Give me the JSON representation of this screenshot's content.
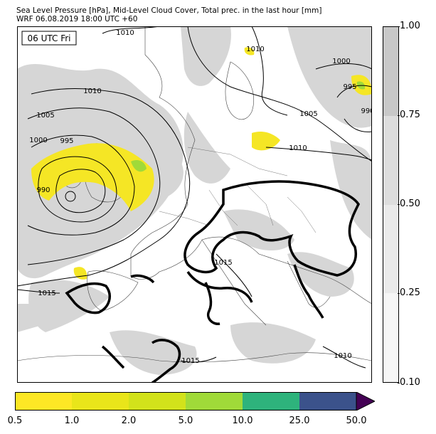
{
  "header": {
    "line1": "Sea Level Pressure [hPa], Mid-Level Cloud Cover, Total prec. in the last hour [mm]",
    "line2": "WRF 06.08.2019 18:00 UTC +60"
  },
  "map": {
    "time_badge": "06 UTC Fri",
    "isobar_labels": [
      "1010",
      "1010",
      "1010",
      "1005",
      "1000",
      "995",
      "990",
      "1000",
      "995",
      "990",
      "1005",
      "1010",
      "1015",
      "1015",
      "1015",
      "1010"
    ]
  },
  "cloud_colorbar": {
    "ticks": [
      "1.00",
      "0.75",
      "0.50",
      "0.25",
      "0.10"
    ],
    "levels": [
      {
        "from": 0.1,
        "to": 0.25,
        "color": "#f6f6f6"
      },
      {
        "from": 0.25,
        "to": 0.5,
        "color": "#eaeaea"
      },
      {
        "from": 0.5,
        "to": 0.75,
        "color": "#dddddd"
      },
      {
        "from": 0.75,
        "to": 1.0,
        "color": "#c8c8c8"
      }
    ]
  },
  "precip_colorbar": {
    "ticks": [
      "0.5",
      "1.0",
      "2.0",
      "5.0",
      "10.0",
      "25.0",
      "50.0"
    ],
    "colors": [
      "#fde725",
      "#e9e51a",
      "#d2e21b",
      "#a0da39",
      "#2eb37c",
      "#3b528b",
      "#440154"
    ]
  }
}
